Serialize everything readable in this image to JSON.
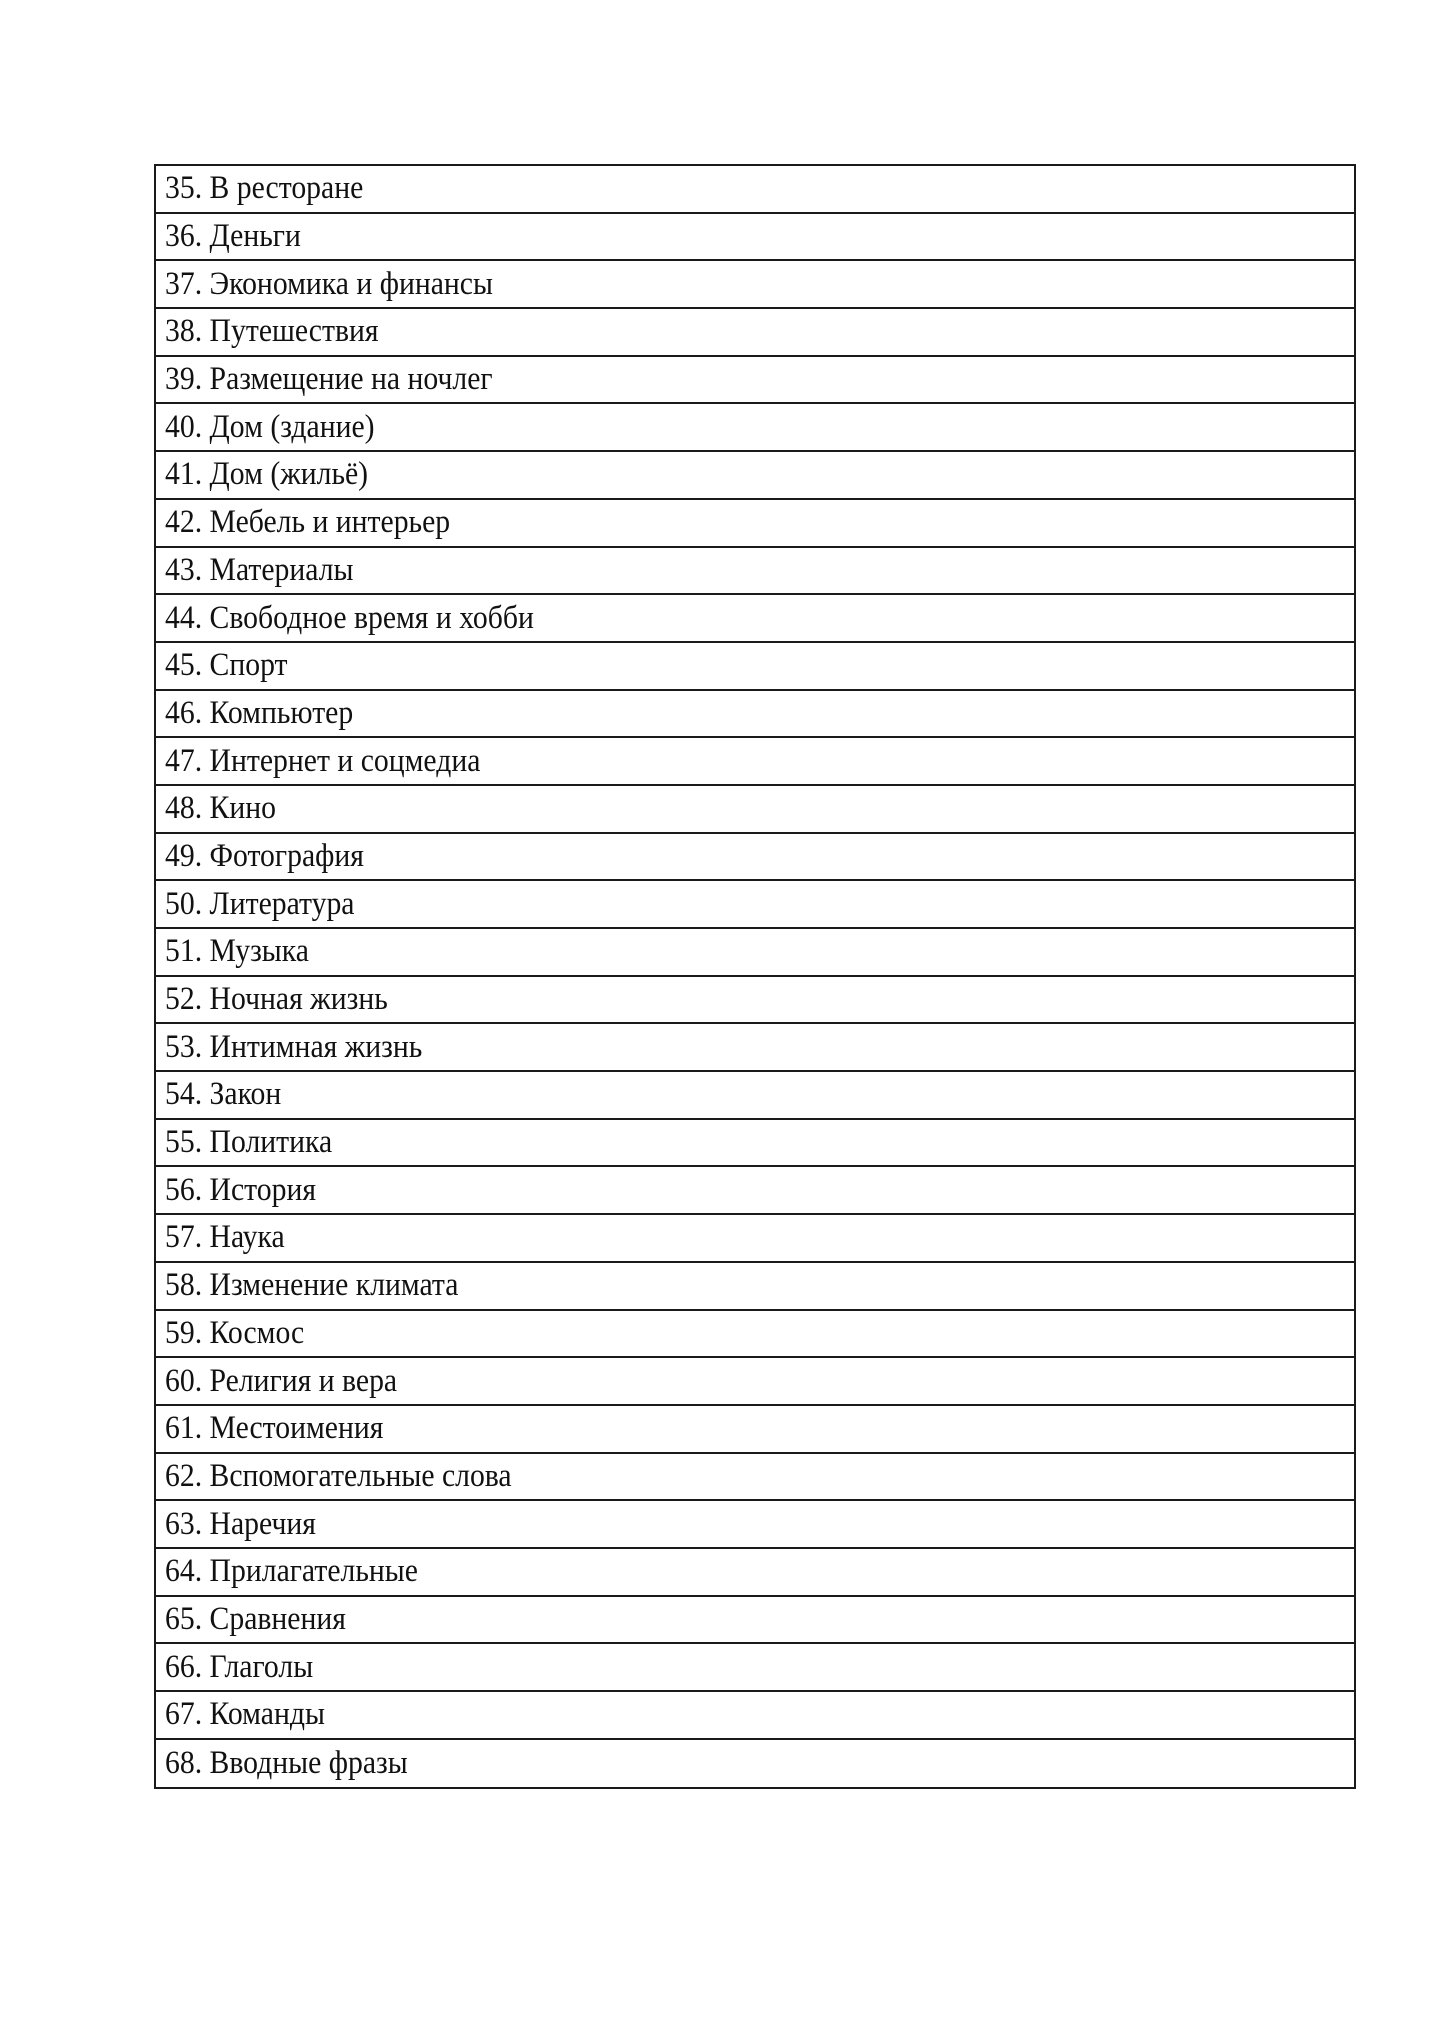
{
  "table": {
    "rows": [
      "35. В ресторане",
      "36. Деньги",
      "37. Экономика и финансы",
      "38. Путешествия",
      "39. Размещение на ночлег",
      "40. Дом (здание)",
      "41. Дом (жильё)",
      "42. Мебель и интерьер",
      "43. Материалы",
      "44. Свободное время и хобби",
      "45. Спорт",
      "46. Компьютер",
      "47. Интернет и соцмедиа",
      "48. Кино",
      "49. Фотография",
      "50. Литература",
      "51. Музыка",
      "52. Ночная жизнь",
      "53. Интимная жизнь",
      "54. Закон",
      "55. Политика",
      "56. История",
      "57. Наука",
      "58. Изменение климата",
      "59. Космос",
      "60. Религия и вера",
      "61. Местоимения",
      "62. Вспомогательные слова",
      "63. Наречия",
      "64. Прилагательные",
      "65. Сравнения",
      "66. Глаголы",
      "67. Команды",
      "68. Вводные фразы"
    ]
  }
}
